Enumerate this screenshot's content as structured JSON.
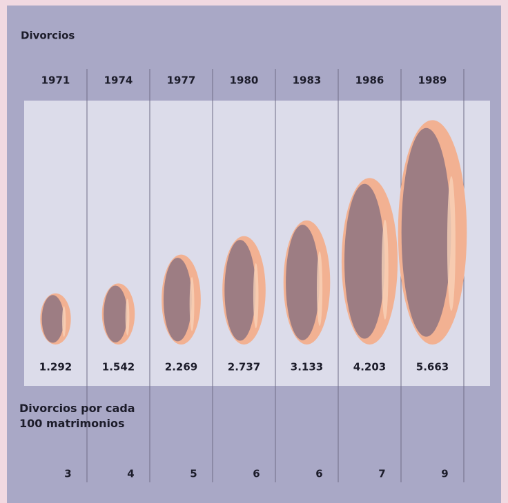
{
  "chart_data": {
    "type": "pictorial",
    "title": "Divorcios",
    "categories": [
      "1971",
      "1974",
      "1977",
      "1980",
      "1983",
      "1986",
      "1989"
    ],
    "series": [
      {
        "values": [
          1292,
          1542,
          2269,
          2737,
          3133,
          4203,
          5663
        ],
        "value_labels": [
          "1.292",
          "1.542",
          "2.269",
          "2.737",
          "3.133",
          "4.203",
          "5.663"
        ],
        "color": "#f2b192"
      },
      {
        "name": "Divorcios por cada 100 matrimonios",
        "values": [
          3,
          4,
          5,
          6,
          6,
          7,
          9
        ]
      }
    ]
  }
}
